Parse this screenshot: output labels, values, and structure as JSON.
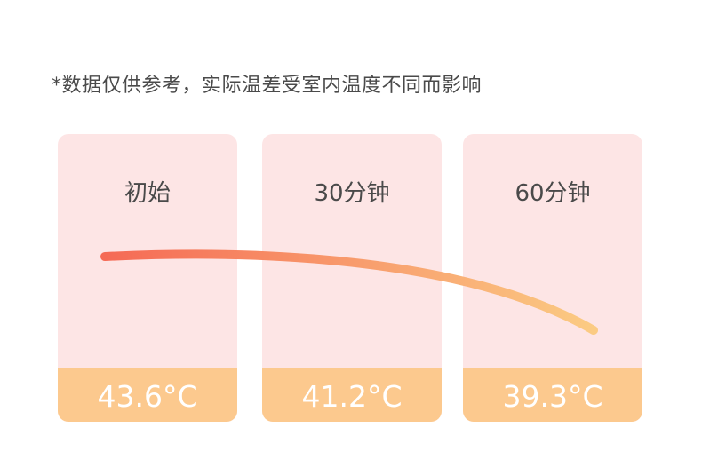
{
  "note": "*数据仅供参考，实际温差受室内温度不同而影响",
  "cards": [
    {
      "label": "初始",
      "temperature": "43.6°C"
    },
    {
      "label": "30分钟",
      "temperature": "41.2°C"
    },
    {
      "label": "60分钟",
      "temperature": "39.3°C"
    }
  ]
}
